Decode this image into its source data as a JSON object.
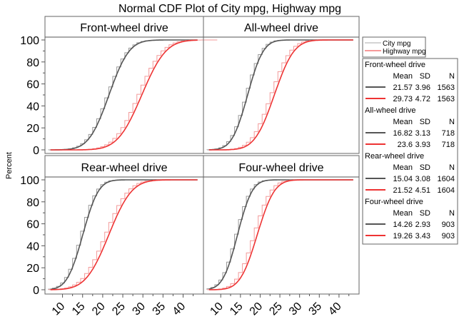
{
  "chart_data": {
    "type": "line",
    "title": "Normal CDF Plot of City mpg, Highway mpg",
    "ylabel": "Percent",
    "xlabel": "",
    "xlim": [
      6.7,
      44
    ],
    "ylim": [
      0,
      100
    ],
    "xticks": [
      "10",
      "15",
      "20",
      "25",
      "30",
      "35",
      "40"
    ],
    "yticks": [
      "0",
      "20",
      "40",
      "60",
      "80",
      "100"
    ],
    "legend": {
      "placement": "right",
      "entries": [
        {
          "name": "City mpg",
          "color": "#555555"
        },
        {
          "name": "Highway mpg",
          "color": "#ee3333"
        }
      ]
    },
    "stats_headers": {
      "mean": "Mean",
      "sd": "SD",
      "n": "N"
    },
    "panels": [
      {
        "title": "Front-wheel drive",
        "series": [
          {
            "name": "City mpg",
            "mean": "21.57",
            "sd": "3.96",
            "n": "1563"
          },
          {
            "name": "Highway mpg",
            "mean": "29.73",
            "sd": "4.72",
            "n": "1563"
          }
        ]
      },
      {
        "title": "All-wheel drive",
        "series": [
          {
            "name": "City mpg",
            "mean": "16.82",
            "sd": "3.13",
            "n": "718"
          },
          {
            "name": "Highway mpg",
            "mean": "23.6",
            "sd": "3.93",
            "n": "718"
          }
        ]
      },
      {
        "title": "Rear-wheel drive",
        "series": [
          {
            "name": "City mpg",
            "mean": "15.04",
            "sd": "3.08",
            "n": "1604"
          },
          {
            "name": "Highway mpg",
            "mean": "21.52",
            "sd": "4.51",
            "n": "1604"
          }
        ]
      },
      {
        "title": "Four-wheel drive",
        "series": [
          {
            "name": "City mpg",
            "mean": "14.26",
            "sd": "2.93",
            "n": "903"
          },
          {
            "name": "Highway mpg",
            "mean": "19.26",
            "sd": "3.43",
            "n": "903"
          }
        ]
      }
    ]
  }
}
